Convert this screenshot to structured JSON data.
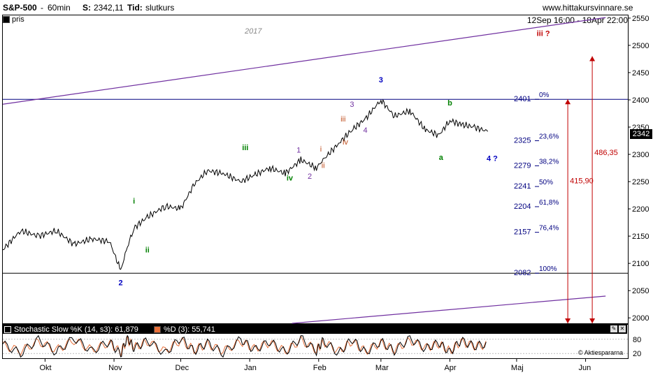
{
  "header": {
    "symbol": "S&P-500",
    "interval": "60min",
    "close_label": "S:",
    "close_value": "2342,11",
    "chart_type_label": "Tid:",
    "chart_type_value": "slutkurs",
    "site": "www.hittakursvinnare.se"
  },
  "legend": {
    "series_name": "pris",
    "period_range": "12Sep 16:00 - 18Apr 22:00",
    "year_label": "2017"
  },
  "last_price_tag": "2342",
  "stochastic": {
    "k_label": "Stochastic Slow %K (14, s3): 61,879",
    "d_label": "%D (3): 55,741",
    "copyright": "© Aktiespararna",
    "colors": {
      "k": "#000000",
      "d": "#e8703a"
    }
  },
  "chart_data": {
    "type": "line",
    "x_tick_labels": [
      "Okt",
      "Nov",
      "Dec",
      "Jan",
      "Feb",
      "Mar",
      "Apr",
      "Maj",
      "Jun"
    ],
    "y_tick_labels": [
      "2000",
      "2050",
      "2100",
      "2150",
      "2200",
      "2250",
      "2300",
      "2350",
      "2400",
      "2450",
      "2500",
      "2550"
    ],
    "ylim": [
      1990,
      2555
    ],
    "stoch_tick_labels": [
      "20",
      "80"
    ],
    "stoch_ylim": [
      0,
      100
    ],
    "series": [
      {
        "name": "pris",
        "x": [
          "2016-09-12",
          "2016-09-20",
          "2016-09-28",
          "2016-10-06",
          "2016-10-14",
          "2016-10-22",
          "2016-10-30",
          "2016-11-04",
          "2016-11-07",
          "2016-11-10",
          "2016-11-16",
          "2016-11-24",
          "2016-12-01",
          "2016-12-07",
          "2016-12-13",
          "2016-12-20",
          "2016-12-28",
          "2017-01-03",
          "2017-01-10",
          "2017-01-17",
          "2017-01-24",
          "2017-01-31",
          "2017-02-03",
          "2017-02-10",
          "2017-02-16",
          "2017-02-22",
          "2017-03-01",
          "2017-03-07",
          "2017-03-14",
          "2017-03-21",
          "2017-03-27",
          "2017-04-01",
          "2017-04-06",
          "2017-04-12",
          "2017-04-18"
        ],
        "values": [
          2125,
          2160,
          2150,
          2160,
          2135,
          2145,
          2140,
          2087,
          2130,
          2165,
          2185,
          2205,
          2200,
          2245,
          2270,
          2265,
          2250,
          2262,
          2275,
          2265,
          2290,
          2275,
          2290,
          2320,
          2345,
          2365,
          2400,
          2370,
          2380,
          2345,
          2335,
          2362,
          2355,
          2350,
          2342
        ]
      },
      {
        "name": "Stochastic Slow %K",
        "values": [
          60,
          20,
          80,
          25,
          85,
          30,
          70,
          15,
          90,
          40,
          75,
          20,
          85,
          30,
          65,
          20,
          80,
          35,
          70,
          25,
          85,
          30,
          75,
          20,
          80,
          25,
          70,
          30,
          85,
          40,
          65,
          25,
          75,
          50,
          62
        ]
      },
      {
        "name": "%D",
        "values": [
          55,
          30,
          70,
          35,
          75,
          35,
          65,
          25,
          80,
          45,
          70,
          30,
          75,
          35,
          60,
          30,
          70,
          40,
          65,
          30,
          75,
          35,
          70,
          30,
          70,
          30,
          65,
          35,
          75,
          45,
          60,
          30,
          70,
          52,
          56
        ]
      }
    ],
    "horizontal_lines": [
      {
        "value": 2401,
        "color": "#000080"
      },
      {
        "value": 2082,
        "color": "#000000"
      }
    ],
    "fib_levels": [
      {
        "price": "2401",
        "pct": "0%",
        "value": 2401
      },
      {
        "price": "2325",
        "pct": "23,6%",
        "value": 2325
      },
      {
        "price": "2279",
        "pct": "38,2%",
        "value": 2279
      },
      {
        "price": "2241",
        "pct": "50%",
        "value": 2241
      },
      {
        "price": "2204",
        "pct": "61,8%",
        "value": 2204
      },
      {
        "price": "2157",
        "pct": "76,4%",
        "value": 2157
      },
      {
        "price": "2082",
        "pct": "100%",
        "value": 2082
      }
    ],
    "trend_lines": [
      {
        "x1": "2016-09-12",
        "y1": 2392,
        "x2": "2017-06-10",
        "y2": 2551,
        "color": "#7030a0"
      },
      {
        "x1": "2017-01-20",
        "y1": 1990,
        "x2": "2017-06-10",
        "y2": 2040,
        "color": "#7030a0"
      }
    ],
    "measures": [
      {
        "label": "415,90",
        "from": 1990,
        "to": 2401,
        "x": "2017-05-24",
        "color": "#c00000"
      },
      {
        "label": "486,35",
        "from": 1990,
        "to": 2480,
        "x": "2017-06-04",
        "color": "#c00000"
      }
    ],
    "wave_labels": [
      {
        "text": "2",
        "x": "2016-11-04",
        "y": 2060,
        "color": "#0000c0",
        "bold": true
      },
      {
        "text": "i",
        "x": "2016-11-10",
        "y": 2210,
        "color": "#008000",
        "bold": true
      },
      {
        "text": "ii",
        "x": "2016-11-16",
        "y": 2120,
        "color": "#008000",
        "bold": true
      },
      {
        "text": "iii",
        "x": "2016-12-30",
        "y": 2308,
        "color": "#008000",
        "bold": true
      },
      {
        "text": "iv",
        "x": "2017-01-19",
        "y": 2252,
        "color": "#008000",
        "bold": true
      },
      {
        "text": "1",
        "x": "2017-01-23",
        "y": 2303,
        "color": "#7030a0",
        "bold": false
      },
      {
        "text": "2",
        "x": "2017-01-28",
        "y": 2255,
        "color": "#7030a0",
        "bold": false
      },
      {
        "text": "i",
        "x": "2017-02-02",
        "y": 2305,
        "color": "#c05020",
        "bold": false
      },
      {
        "text": "ii",
        "x": "2017-02-03",
        "y": 2275,
        "color": "#c05020",
        "bold": false
      },
      {
        "text": "iii",
        "x": "2017-02-12",
        "y": 2360,
        "color": "#c05020",
        "bold": false
      },
      {
        "text": "iv",
        "x": "2017-02-13",
        "y": 2318,
        "color": "#c05020",
        "bold": false
      },
      {
        "text": "3",
        "x": "2017-02-16",
        "y": 2387,
        "color": "#7030a0",
        "bold": false
      },
      {
        "text": "4",
        "x": "2017-02-22",
        "y": 2340,
        "color": "#7030a0",
        "bold": false
      },
      {
        "text": "3",
        "x": "2017-03-01",
        "y": 2432,
        "color": "#0000c0",
        "bold": true
      },
      {
        "text": "a",
        "x": "2017-03-28",
        "y": 2290,
        "color": "#008000",
        "bold": true
      },
      {
        "text": "b",
        "x": "2017-04-01",
        "y": 2390,
        "color": "#008000",
        "bold": true
      },
      {
        "text": "4 ?",
        "x": "2017-04-20",
        "y": 2288,
        "color": "#0000c0",
        "bold": true
      },
      {
        "text": "iii ?",
        "x": "2017-05-13",
        "y": 2517,
        "color": "#c00000",
        "bold": true
      }
    ]
  }
}
